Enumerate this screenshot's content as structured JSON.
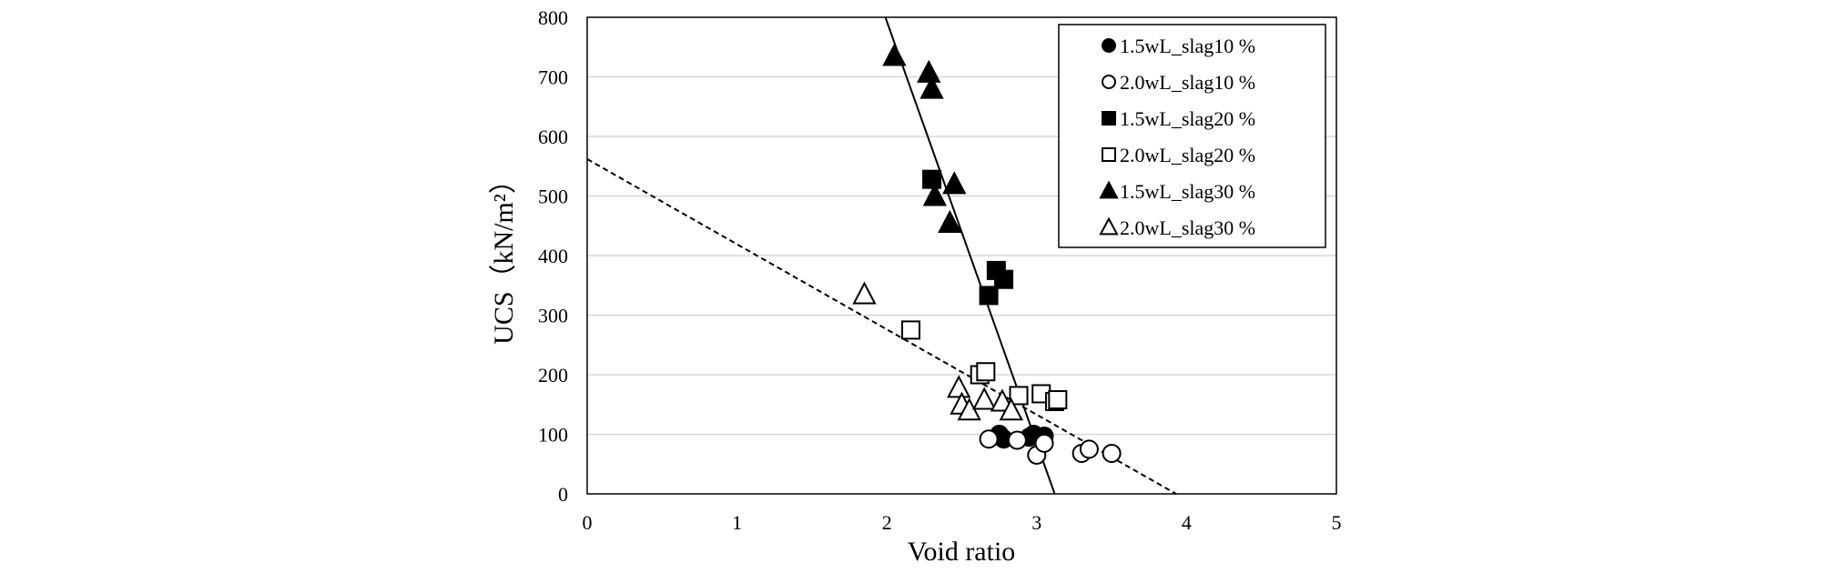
{
  "chart_data": {
    "type": "scatter",
    "xlabel": "Void ratio",
    "ylabel": "UCS（kN/m²）",
    "xlim": [
      0,
      5
    ],
    "ylim": [
      0,
      800
    ],
    "xticks": [
      "0",
      "1",
      "2",
      "3",
      "4",
      "5"
    ],
    "yticks": [
      "0",
      "100",
      "200",
      "300",
      "400",
      "500",
      "600",
      "700",
      "800"
    ],
    "grid": "horizontal",
    "legend_position": "top-right",
    "series": [
      {
        "name": "1.5wL_slag10 %",
        "marker": "circle",
        "filled": true,
        "points": [
          [
            2.75,
            100
          ],
          [
            2.78,
            92
          ],
          [
            2.95,
            95
          ],
          [
            2.98,
            100
          ],
          [
            3.05,
            97
          ]
        ]
      },
      {
        "name": "2.0wL_slag10 %",
        "marker": "circle",
        "filled": false,
        "points": [
          [
            2.68,
            92
          ],
          [
            2.87,
            90
          ],
          [
            3.0,
            65
          ],
          [
            3.05,
            85
          ],
          [
            3.3,
            68
          ],
          [
            3.35,
            75
          ],
          [
            3.5,
            68
          ]
        ]
      },
      {
        "name": "1.5wL_slag20 %",
        "marker": "square",
        "filled": true,
        "points": [
          [
            2.3,
            528
          ],
          [
            2.68,
            333
          ],
          [
            2.73,
            375
          ],
          [
            2.78,
            360
          ]
        ]
      },
      {
        "name": "2.0wL_slag20 %",
        "marker": "square",
        "filled": false,
        "points": [
          [
            2.16,
            275
          ],
          [
            2.62,
            200
          ],
          [
            2.66,
            205
          ],
          [
            2.88,
            165
          ],
          [
            3.03,
            168
          ],
          [
            3.12,
            155
          ],
          [
            3.14,
            158
          ]
        ]
      },
      {
        "name": "1.5wL_slag30 %",
        "marker": "triangle",
        "filled": true,
        "points": [
          [
            2.05,
            735
          ],
          [
            2.28,
            707
          ],
          [
            2.3,
            680
          ],
          [
            2.32,
            500
          ],
          [
            2.42,
            455
          ],
          [
            2.45,
            520
          ]
        ]
      },
      {
        "name": "2.0wL_slag30 %",
        "marker": "triangle",
        "filled": false,
        "points": [
          [
            1.85,
            335
          ],
          [
            2.48,
            178
          ],
          [
            2.5,
            150
          ],
          [
            2.55,
            140
          ],
          [
            2.65,
            158
          ],
          [
            2.77,
            155
          ],
          [
            2.83,
            140
          ]
        ]
      }
    ],
    "lines": [
      {
        "style": "solid",
        "from": [
          1.99,
          800
        ],
        "to": [
          3.12,
          0
        ]
      },
      {
        "style": "dashed",
        "from": [
          0,
          562
        ],
        "to": [
          3.93,
          0
        ]
      }
    ]
  }
}
